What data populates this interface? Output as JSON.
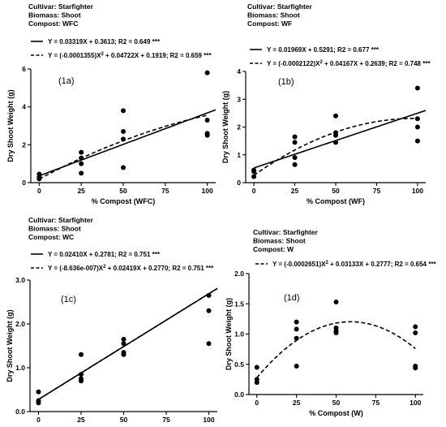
{
  "chart_data": [
    {
      "id": "1a",
      "type": "scatter",
      "header": [
        "Cultivar: Starfighter",
        "Biomass: Shoot",
        "Compost: WFC"
      ],
      "legend": [
        {
          "style": "solid",
          "label": "Y = 0.03319X + 0.3613; R2 = 0.649 ***"
        },
        {
          "style": "dashed",
          "label": "Y = (-0.0001355)X",
          "sup": "2",
          "label_rest": " + 0.04722X + 0.1919; R2 = 0.659 ***"
        }
      ],
      "panel_label": "(1a)",
      "xlabel": "% Compost (WFC)",
      "ylabel": "Dry Shoot Weight (g)",
      "xticks": [
        0,
        25,
        50,
        75,
        100
      ],
      "yticks": [
        0,
        2,
        4,
        6
      ],
      "xlim": [
        -5,
        105
      ],
      "ylim": [
        0,
        6
      ],
      "points": [
        [
          0,
          0.45
        ],
        [
          0,
          0.3
        ],
        [
          0,
          0.2
        ],
        [
          25,
          1.6
        ],
        [
          25,
          1.3
        ],
        [
          25,
          1.0
        ],
        [
          25,
          0.5
        ],
        [
          50,
          3.8
        ],
        [
          50,
          2.7
        ],
        [
          50,
          2.3
        ],
        [
          50,
          0.8
        ],
        [
          100,
          5.8
        ],
        [
          100,
          3.3
        ],
        [
          100,
          2.6
        ],
        [
          100,
          2.5
        ]
      ],
      "fits": [
        {
          "style": "solid",
          "a": 0,
          "b": 0.03319,
          "c": 0.3613,
          "x": [
            0,
            105
          ]
        },
        {
          "style": "dashed",
          "a": -0.0001355,
          "b": 0.04722,
          "c": 0.1919,
          "x": [
            0,
            100
          ]
        }
      ]
    },
    {
      "id": "1b",
      "type": "scatter",
      "header": [
        "Cultivar: Starfighter",
        "Biomass: Shoot",
        "Compost: WF"
      ],
      "legend": [
        {
          "style": "solid",
          "label": "Y = 0.01969X + 0.5291; R2 = 0.677 ***"
        },
        {
          "style": "dashed",
          "label": "Y = (-0.0002122)X",
          "sup": "2",
          "label_rest": " + 0.04167X + 0.2639; R2 = 0.748 ***"
        }
      ],
      "panel_label": "(1b)",
      "xlabel": "% Compost (WF)",
      "ylabel": "Dry Shoot Weight (g)",
      "xticks": [
        0,
        25,
        50,
        75,
        100
      ],
      "yticks": [
        0,
        1,
        2,
        3,
        4
      ],
      "xlim": [
        -5,
        105
      ],
      "ylim": [
        0,
        4
      ],
      "points": [
        [
          0,
          0.45
        ],
        [
          0,
          0.4
        ],
        [
          0,
          0.22
        ],
        [
          25,
          1.65
        ],
        [
          25,
          1.45
        ],
        [
          25,
          0.9
        ],
        [
          25,
          0.65
        ],
        [
          50,
          2.4
        ],
        [
          50,
          1.8
        ],
        [
          50,
          1.7
        ],
        [
          50,
          1.45
        ],
        [
          100,
          3.4
        ],
        [
          100,
          2.3
        ],
        [
          100,
          2.0
        ],
        [
          100,
          1.5
        ]
      ],
      "fits": [
        {
          "style": "solid",
          "a": 0,
          "b": 0.01969,
          "c": 0.5291,
          "x": [
            0,
            105
          ]
        },
        {
          "style": "dashed",
          "a": -0.0002122,
          "b": 0.04167,
          "c": 0.2639,
          "x": [
            0,
            100
          ]
        }
      ]
    },
    {
      "id": "1c",
      "type": "scatter",
      "header": [
        "Cultivar: Starfighter",
        "Biomass: Shoot",
        "Compost: WC"
      ],
      "legend": [
        {
          "style": "solid",
          "label": "Y = 0.02410X + 0.2781; R2 = 0.751 ***"
        },
        {
          "style": "dashed",
          "label": "Y = (-8.636e-007)X",
          "sup": "2",
          "label_rest": " + 0.02419X + 0.2770; R2 = 0.751 ***"
        }
      ],
      "panel_label": "(1c)",
      "xlabel": "% Compost (WC)",
      "ylabel": "Dry Shoot Weight (g)",
      "xticks": [
        0,
        25,
        50,
        75,
        100
      ],
      "yticks": [
        0,
        1,
        2,
        3
      ],
      "xlim": [
        -5,
        105
      ],
      "ylim": [
        0,
        3
      ],
      "points": [
        [
          0,
          0.45
        ],
        [
          0,
          0.25
        ],
        [
          0,
          0.2
        ],
        [
          25,
          1.3
        ],
        [
          25,
          0.85
        ],
        [
          25,
          0.75
        ],
        [
          25,
          0.7
        ],
        [
          50,
          1.65
        ],
        [
          50,
          1.55
        ],
        [
          50,
          1.35
        ],
        [
          50,
          1.3
        ],
        [
          100,
          2.65
        ],
        [
          100,
          2.3
        ],
        [
          100,
          1.55
        ]
      ],
      "fits": [
        {
          "style": "solid",
          "a": 0,
          "b": 0.0241,
          "c": 0.2781,
          "x": [
            0,
            105
          ]
        },
        {
          "style": "dashed",
          "a": -8.636e-07,
          "b": 0.02419,
          "c": 0.277,
          "x": [
            0,
            105
          ]
        }
      ]
    },
    {
      "id": "1d",
      "type": "scatter",
      "header": [
        "Cultivar: Starfighter",
        "Biomass: Shoot",
        "Compost: W"
      ],
      "legend": [
        {
          "style": "dashed",
          "label": "Y = (-0.0002651)X",
          "sup": "2",
          "label_rest": " + 0.03133X + 0.2777; R2 = 0.654 ***"
        }
      ],
      "panel_label": "(1d)",
      "xlabel": "% Compost (W)",
      "ylabel": "Dry Shoot Weight (g)",
      "xticks": [
        0,
        25,
        50,
        75,
        100
      ],
      "yticks": [
        0.0,
        0.5,
        1.0,
        1.5,
        2.0
      ],
      "xlim": [
        -5,
        105
      ],
      "ylim": [
        0,
        2
      ],
      "points": [
        [
          0,
          0.45
        ],
        [
          0,
          0.25
        ],
        [
          0,
          0.2
        ],
        [
          25,
          1.2
        ],
        [
          25,
          1.08
        ],
        [
          25,
          0.93
        ],
        [
          25,
          0.47
        ],
        [
          50,
          1.53
        ],
        [
          50,
          1.1
        ],
        [
          50,
          1.05
        ],
        [
          50,
          1.02
        ],
        [
          100,
          1.12
        ],
        [
          100,
          1.02
        ],
        [
          100,
          0.47
        ],
        [
          100,
          0.44
        ]
      ],
      "fits": [
        {
          "style": "dashed",
          "a": -0.0002651,
          "b": 0.03133,
          "c": 0.2777,
          "x": [
            0,
            100
          ]
        }
      ]
    }
  ]
}
